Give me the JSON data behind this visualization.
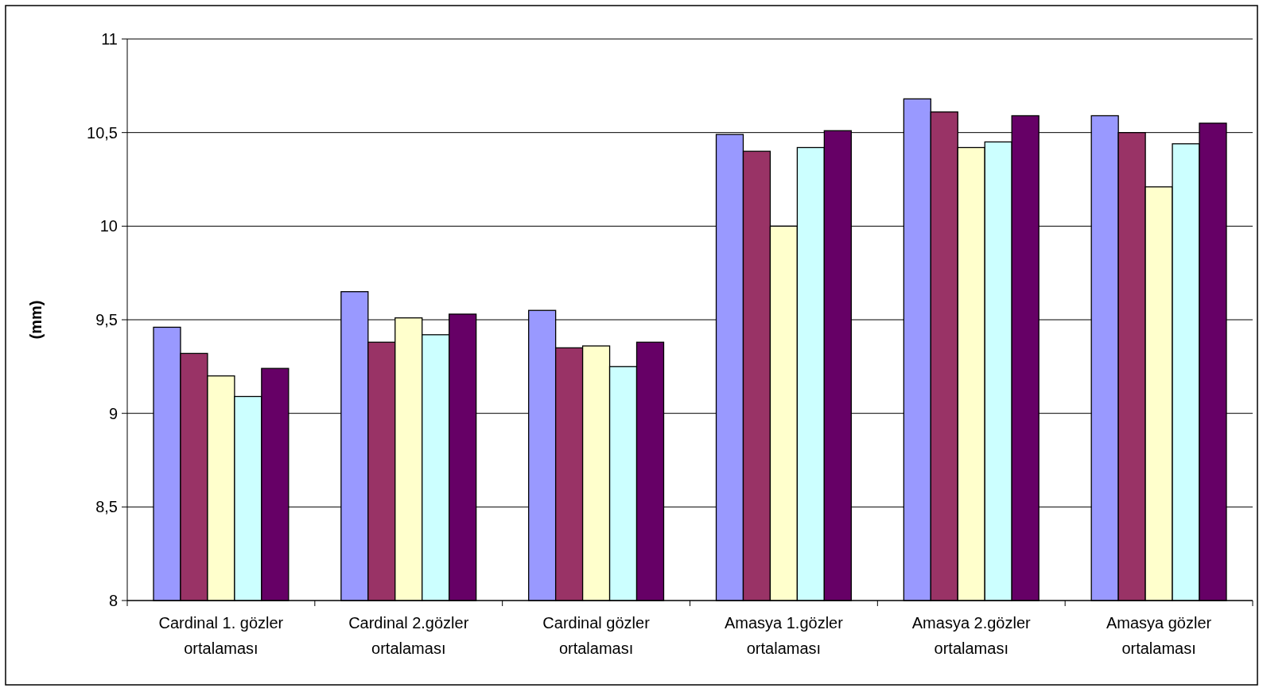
{
  "chart_data": {
    "type": "bar",
    "ylabel": "(mm)",
    "categories": [
      "Cardinal 1. gözler ortalaması",
      "Cardinal 2.gözler ortalaması",
      "Cardinal gözler ortalaması",
      "Amasya 1.gözler ortalaması",
      "Amasya 2.gözler ortalaması",
      "Amasya gözler ortalaması"
    ],
    "series": [
      {
        "color": "#9999ff",
        "values": [
          9.46,
          9.65,
          9.55,
          10.49,
          10.68,
          10.59
        ]
      },
      {
        "color": "#993366",
        "values": [
          9.32,
          9.38,
          9.35,
          10.4,
          10.61,
          10.5
        ]
      },
      {
        "color": "#ffffcc",
        "values": [
          9.2,
          9.51,
          9.36,
          10.0,
          10.42,
          10.21
        ]
      },
      {
        "color": "#ccffff",
        "values": [
          9.09,
          9.42,
          9.25,
          10.42,
          10.45,
          10.44
        ]
      },
      {
        "color": "#660066",
        "values": [
          9.24,
          9.53,
          9.38,
          10.51,
          10.59,
          10.55
        ]
      }
    ],
    "ylim": [
      8,
      11
    ],
    "yticks": [
      8,
      {
        "value": 8.5,
        "label": "8,5"
      },
      9,
      {
        "value": 9.5,
        "label": "9,5"
      },
      10,
      {
        "value": 10.5,
        "label": "10,5"
      },
      11
    ],
    "grid": "y"
  }
}
